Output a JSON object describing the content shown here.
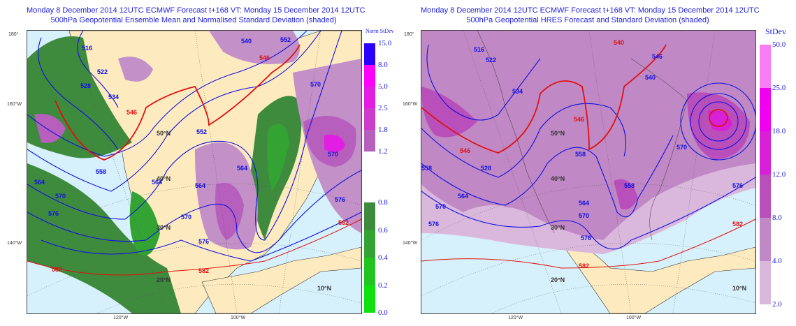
{
  "left": {
    "title1": "Monday 8 December 2014 12UTC ECMWF Forecast t+168  VT: Monday 15 December 2014 12UTC",
    "title2": "500hPa Geopotential Ensemble Mean and Normalised Standard Deviation (shaded)",
    "legend_title": "Norm StDev",
    "legend_upper": [
      {
        "v": "15.0",
        "c": "#2a00ff"
      },
      {
        "v": "8.0",
        "c": "#ff00ff"
      },
      {
        "v": "5.0",
        "c": "#e21ee2"
      },
      {
        "v": "2.5",
        "c": "#cc3dcc"
      },
      {
        "v": "1.8",
        "c": "#b65fbd"
      },
      {
        "v": "1.2",
        "c": "#c390c8"
      }
    ],
    "legend_lower": [
      {
        "v": "0.8",
        "c": "#3e8b3e"
      },
      {
        "v": "0.6",
        "c": "#33a433"
      },
      {
        "v": "0.4",
        "c": "#22c422"
      },
      {
        "v": "0.2",
        "c": "#10e010"
      },
      {
        "v": "0.0",
        "c": "#00ff00"
      }
    ],
    "contours": [
      "516",
      "522",
      "528",
      "534",
      "540",
      "546",
      "552",
      "558",
      "564",
      "570",
      "576",
      "582"
    ]
  },
  "right": {
    "title1": "Monday 8 December 2014 12UTC ECMWF Forecast t+168  VT: Monday 15 December 2014 12UTC",
    "title2": "500hPa Geopotential HRES Forecast and Standard Deviation (shaded)",
    "legend_title": "StDev",
    "legend": [
      {
        "v": "50.0",
        "c": "#f77ef7"
      },
      {
        "v": "25.0",
        "c": "#f000f0"
      },
      {
        "v": "18.0",
        "c": "#d820d8"
      },
      {
        "v": "12.0",
        "c": "#b94fba"
      },
      {
        "v": "8.0",
        "c": "#c088c4"
      },
      {
        "v": "4.0",
        "c": "#dab8dc"
      },
      {
        "v": "2.0",
        "c": ""
      }
    ]
  },
  "axes": {
    "lon_left": [
      "180°",
      "160°W",
      "140°W"
    ],
    "lon_bottom": [
      "120°W",
      "100°W"
    ],
    "lat": [
      "50°N",
      "40°N",
      "30°N",
      "20°N",
      "10°N"
    ]
  },
  "colors": {
    "sea": "#d6f1fb",
    "land": "#fdebbf",
    "contour": "#1010e0",
    "contour_red": "#e01010"
  }
}
